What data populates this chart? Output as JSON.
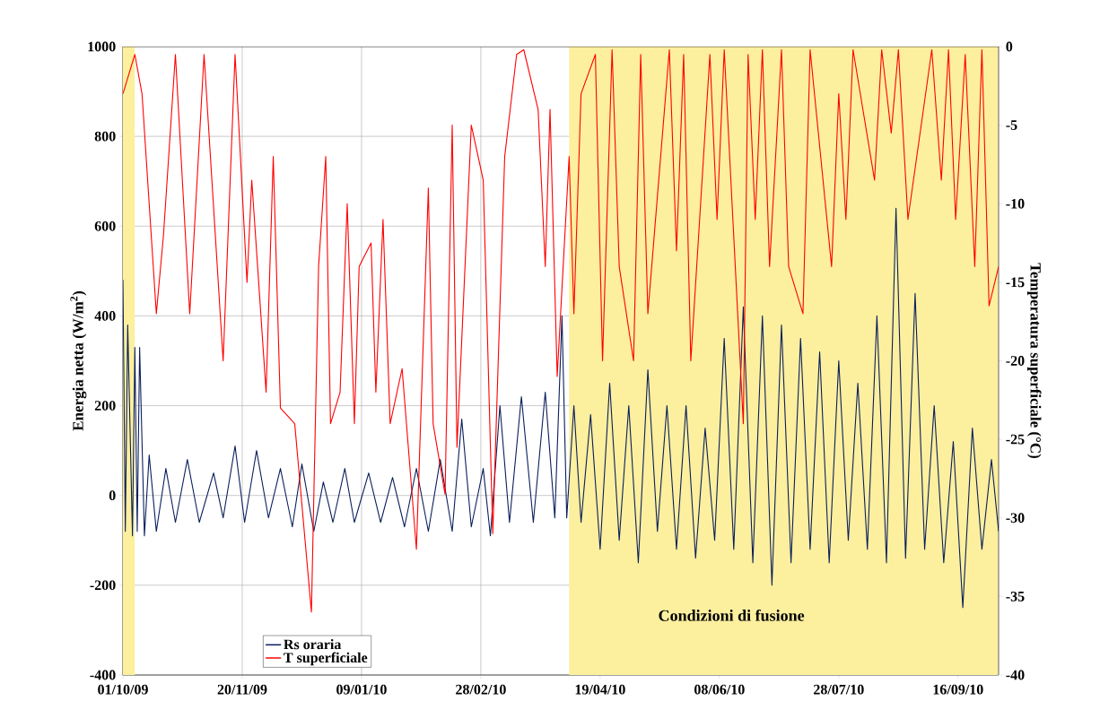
{
  "chart_data": {
    "type": "line",
    "ylabel": "Energia netta (W/m$^{2}$)",
    "y2label": "Temperatura superficiale (°C)",
    "xlim": [
      "2009-10-01",
      "2010-10-03"
    ],
    "xticks": [
      {
        "value": "2009-10-01",
        "label": "01/10/09"
      },
      {
        "value": "2009-11-20",
        "label": "20/11/09"
      },
      {
        "value": "2010-01-09",
        "label": "09/01/10"
      },
      {
        "value": "2010-02-28",
        "label": "28/02/10"
      },
      {
        "value": "2010-04-19",
        "label": "19/04/10"
      },
      {
        "value": "2010-06-08",
        "label": "08/06/10"
      },
      {
        "value": "2010-07-28",
        "label": "28/07/10"
      },
      {
        "value": "2010-09-16",
        "label": "16/09/10"
      }
    ],
    "ylim": [
      -400,
      1000
    ],
    "yticks": [
      -400,
      -200,
      0,
      200,
      400,
      600,
      800,
      1000
    ],
    "y2lim": [
      -40,
      0
    ],
    "y2ticks": [
      -40,
      -35,
      -30,
      -25,
      -20,
      -15,
      -10,
      -5,
      0
    ],
    "grid": true,
    "legend": "bottom left",
    "bands": [
      {
        "axis": "x",
        "from": "2009-10-01",
        "to": "2009-10-06",
        "color": "#fcef9e"
      },
      {
        "axis": "x",
        "from": "2010-04-06",
        "to": "2010-10-03",
        "color": "#fcef9e",
        "label": "Condizioni di fusione"
      }
    ],
    "series": [
      {
        "name": "Rs oraria",
        "color": "#0a1f5c",
        "x": [
          "2009-10-01",
          "2009-10-02",
          "2009-10-03",
          "2009-10-05",
          "2009-10-06",
          "2009-10-07",
          "2009-10-08",
          "2009-10-10",
          "2009-10-12",
          "2009-10-15",
          "2009-10-19",
          "2009-10-23",
          "2009-10-28",
          "2009-11-02",
          "2009-11-08",
          "2009-11-12",
          "2009-11-17",
          "2009-11-21",
          "2009-11-26",
          "2009-12-01",
          "2009-12-06",
          "2009-12-11",
          "2009-12-15",
          "2009-12-20",
          "2009-12-24",
          "2009-12-28",
          "2010-01-02",
          "2010-01-06",
          "2010-01-12",
          "2010-01-17",
          "2010-01-22",
          "2010-01-27",
          "2010-02-01",
          "2010-02-06",
          "2010-02-11",
          "2010-02-16",
          "2010-02-20",
          "2010-02-24",
          "2010-03-01",
          "2010-03-04",
          "2010-03-08",
          "2010-03-12",
          "2010-03-17",
          "2010-03-22",
          "2010-03-27",
          "2010-03-31",
          "2010-04-03",
          "2010-04-05",
          "2010-04-08",
          "2010-04-11",
          "2010-04-15",
          "2010-04-19",
          "2010-04-23",
          "2010-04-27",
          "2010-05-01",
          "2010-05-05",
          "2010-05-09",
          "2010-05-13",
          "2010-05-17",
          "2010-05-21",
          "2010-05-25",
          "2010-05-29",
          "2010-06-02",
          "2010-06-06",
          "2010-06-10",
          "2010-06-14",
          "2010-06-18",
          "2010-06-22",
          "2010-06-26",
          "2010-06-30",
          "2010-07-04",
          "2010-07-08",
          "2010-07-12",
          "2010-07-16",
          "2010-07-20",
          "2010-07-24",
          "2010-07-28",
          "2010-08-01",
          "2010-08-05",
          "2010-08-09",
          "2010-08-13",
          "2010-08-17",
          "2010-08-21",
          "2010-08-25",
          "2010-08-29",
          "2010-09-02",
          "2010-09-06",
          "2010-09-10",
          "2010-09-14",
          "2010-09-18",
          "2010-09-22",
          "2010-09-26",
          "2010-09-30",
          "2010-10-03"
        ],
        "values": [
          480,
          -80,
          380,
          -90,
          330,
          -80,
          330,
          -90,
          90,
          -80,
          60,
          -60,
          80,
          -60,
          50,
          -50,
          110,
          -60,
          100,
          -50,
          60,
          -70,
          70,
          -80,
          30,
          -60,
          60,
          -60,
          50,
          -60,
          40,
          -70,
          60,
          -80,
          80,
          -80,
          170,
          -70,
          60,
          -90,
          200,
          -60,
          220,
          -60,
          230,
          -50,
          400,
          -50,
          200,
          -60,
          180,
          -120,
          250,
          -100,
          200,
          -150,
          280,
          -80,
          200,
          -120,
          200,
          -140,
          150,
          -100,
          350,
          -120,
          420,
          -150,
          400,
          -200,
          380,
          -150,
          350,
          -120,
          320,
          -150,
          300,
          -100,
          250,
          -120,
          400,
          -150,
          640,
          -140,
          450,
          -120,
          200,
          -150,
          120,
          -250,
          150,
          -120,
          80,
          -80
        ]
      },
      {
        "name": "T superficiale",
        "color": "#ff0000",
        "axis": "y2",
        "x": [
          "2009-10-01",
          "2009-10-06",
          "2009-10-09",
          "2009-10-15",
          "2009-10-18",
          "2009-10-23",
          "2009-10-29",
          "2009-11-04",
          "2009-11-12",
          "2009-11-17",
          "2009-11-22",
          "2009-11-24",
          "2009-11-30",
          "2009-12-03",
          "2009-12-06",
          "2009-12-12",
          "2009-12-19",
          "2009-12-22",
          "2009-12-25",
          "2009-12-27",
          "2009-12-31",
          "2010-01-03",
          "2010-01-06",
          "2010-01-08",
          "2010-01-13",
          "2010-01-15",
          "2010-01-18",
          "2010-01-21",
          "2010-01-26",
          "2010-02-01",
          "2010-02-06",
          "2010-02-08",
          "2010-02-13",
          "2010-02-16",
          "2010-02-18",
          "2010-02-24",
          "2010-03-01",
          "2010-03-05",
          "2010-03-10",
          "2010-03-15",
          "2010-03-18",
          "2010-03-24",
          "2010-03-27",
          "2010-03-29",
          "2010-04-01",
          "2010-04-06",
          "2010-04-08",
          "2010-04-11",
          "2010-04-17",
          "2010-04-20",
          "2010-04-24",
          "2010-04-27",
          "2010-05-03",
          "2010-05-06",
          "2010-05-09",
          "2010-05-18",
          "2010-05-21",
          "2010-05-24",
          "2010-05-27",
          "2010-06-04",
          "2010-06-07",
          "2010-06-10",
          "2010-06-18",
          "2010-06-20",
          "2010-06-23",
          "2010-06-26",
          "2010-06-29",
          "2010-07-04",
          "2010-07-07",
          "2010-07-13",
          "2010-07-16",
          "2010-07-25",
          "2010-07-28",
          "2010-07-31",
          "2010-08-03",
          "2010-08-12",
          "2010-08-15",
          "2010-08-19",
          "2010-08-22",
          "2010-08-26",
          "2010-09-05",
          "2010-09-09",
          "2010-09-12",
          "2010-09-15",
          "2010-09-19",
          "2010-09-23",
          "2010-09-26",
          "2010-09-29",
          "2010-10-03"
        ],
        "values": [
          -3,
          -0.5,
          -3,
          -17,
          -12,
          -0.5,
          -17,
          -0.5,
          -20,
          -0.5,
          -15,
          -8.5,
          -22,
          -7,
          -23,
          -24,
          -36,
          -14,
          -7,
          -24,
          -22,
          -10,
          -24,
          -14,
          -12.5,
          -22,
          -11,
          -24,
          -20.5,
          -32,
          -9,
          -24,
          -28.5,
          -5,
          -25.5,
          -5,
          -8.5,
          -31,
          -7,
          -0.5,
          -0.2,
          -4,
          -14,
          -4,
          -21,
          -7,
          -17,
          -3,
          -0.5,
          -20,
          -0.2,
          -14,
          -20,
          -0.5,
          -17,
          -0.2,
          -13,
          -0.5,
          -20,
          -0.5,
          -11,
          -0.2,
          -24,
          -0.5,
          -11,
          -0.2,
          -14,
          -0.2,
          -14,
          -17,
          -0.2,
          -14,
          -3,
          -11,
          -0.2,
          -8.5,
          -0.2,
          -5.5,
          -0.2,
          -11,
          -0.2,
          -8.5,
          -0.2,
          -11,
          -0.5,
          -14,
          -0.2,
          -16.5,
          -14
        ]
      }
    ]
  }
}
